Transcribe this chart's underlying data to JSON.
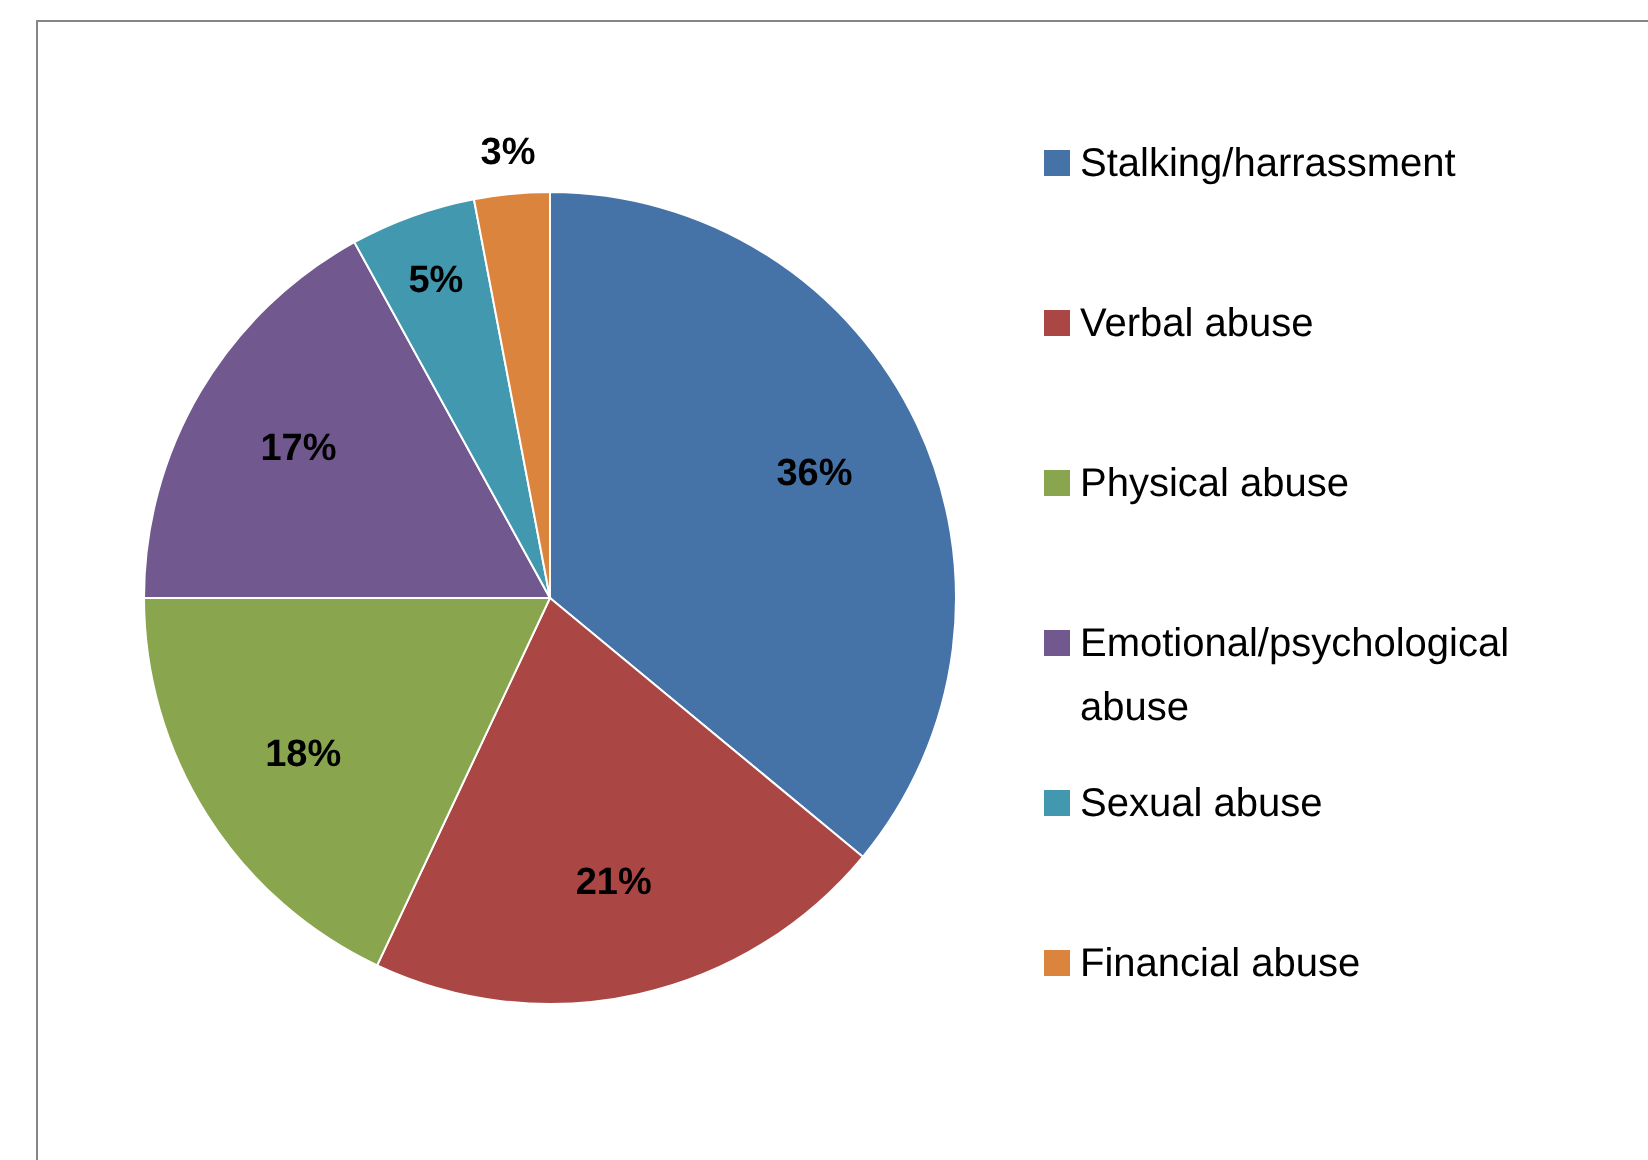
{
  "chart_data": {
    "type": "pie",
    "categories": [
      "Stalking/harrassment",
      "Verbal abuse",
      "Physical abuse",
      "Emotional/psychological abuse",
      "Sexual abuse",
      "Financial abuse"
    ],
    "values": [
      36,
      21,
      18,
      17,
      5,
      3
    ],
    "value_labels": [
      "36%",
      "21%",
      "18%",
      "17%",
      "5%",
      "3%"
    ],
    "colors": [
      "#4572a7",
      "#aa4643",
      "#89a54e",
      "#71588f",
      "#4198af",
      "#db843d"
    ],
    "legend": "right"
  }
}
